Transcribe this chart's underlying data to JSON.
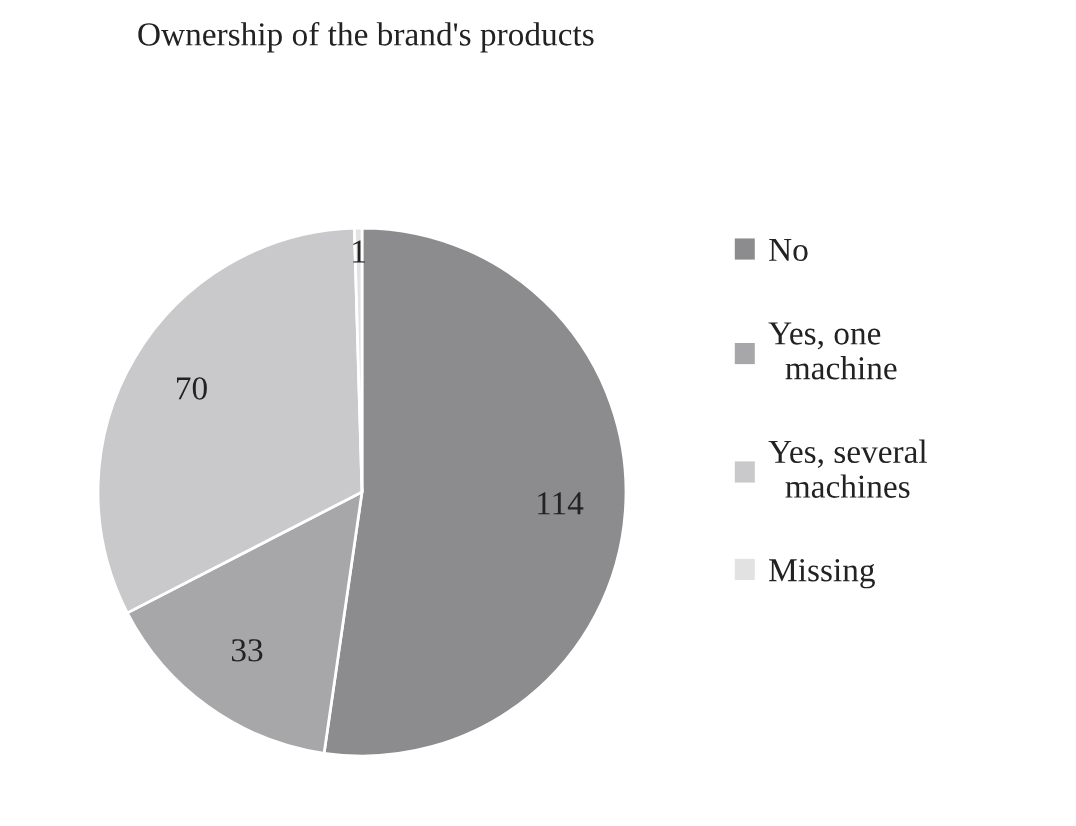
{
  "chart_data": {
    "type": "pie",
    "title": "Ownership of the brand's products",
    "categories": [
      "No",
      "Yes, one machine",
      "Yes, several machines",
      "Missing"
    ],
    "values": [
      114,
      33,
      70,
      1
    ],
    "colors": [
      "#8c8c8e",
      "#a7a7a9",
      "#c9c9cb",
      "#e2e2e2"
    ],
    "data_labels": true,
    "legend": "right"
  }
}
